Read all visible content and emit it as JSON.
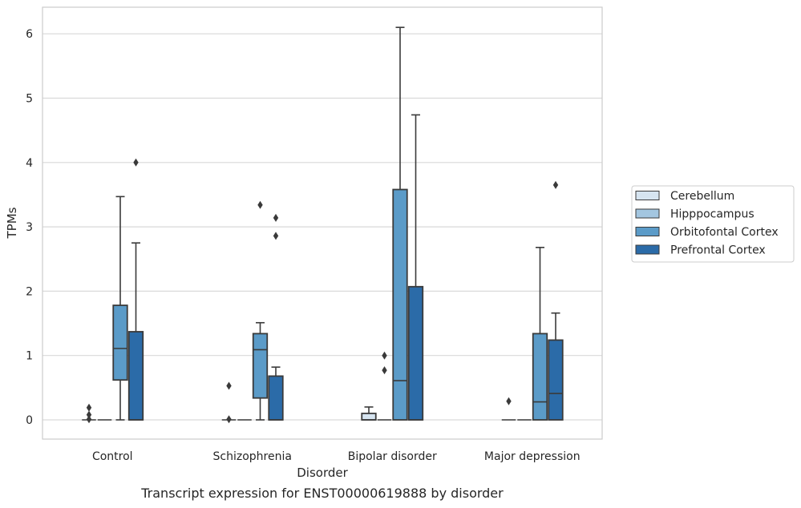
{
  "chart_data": {
    "type": "box",
    "title": "Transcript expression for ENST00000619888 by disorder",
    "xlabel": "Disorder",
    "ylabel": "TPMs",
    "ylim": [
      -0.3,
      6.42
    ],
    "yticks": [
      0,
      1,
      2,
      3,
      4,
      5,
      6
    ],
    "grid": "horizontal",
    "legend_position": "right",
    "categories": [
      "Control",
      "Schizophrenia",
      "Bipolar disorder",
      "Major depression"
    ],
    "series": [
      {
        "name": "Cerebellum",
        "color": "#d6e4f0",
        "boxes": [
          {
            "whislo": 0,
            "q1": 0,
            "med": 0,
            "q3": 0,
            "whishi": 0,
            "fliers": [
              0.01,
              0.08,
              0.19
            ]
          },
          {
            "whislo": 0,
            "q1": 0,
            "med": 0,
            "q3": 0,
            "whishi": 0,
            "fliers": [
              0.01,
              0.53
            ]
          },
          {
            "whislo": 0,
            "q1": 0,
            "med": 0,
            "q3": 0.1,
            "whishi": 0.2,
            "fliers": []
          },
          {
            "whislo": 0,
            "q1": 0,
            "med": 0,
            "q3": 0,
            "whishi": 0,
            "fliers": [
              0.29
            ]
          }
        ]
      },
      {
        "name": "Hipppocampus",
        "color": "#a3c6e0",
        "boxes": [
          {
            "whislo": 0,
            "q1": 0,
            "med": 0,
            "q3": 0,
            "whishi": 0,
            "fliers": []
          },
          {
            "whislo": 0,
            "q1": 0,
            "med": 0,
            "q3": 0,
            "whishi": 0,
            "fliers": []
          },
          {
            "whislo": 0,
            "q1": 0,
            "med": 0,
            "q3": 0,
            "whishi": 0,
            "fliers": [
              0.77,
              1.0
            ]
          },
          {
            "whislo": 0,
            "q1": 0,
            "med": 0,
            "q3": 0,
            "whishi": 0,
            "fliers": []
          }
        ]
      },
      {
        "name": "Orbitofontal Cortex",
        "color": "#5b9bc8",
        "boxes": [
          {
            "whislo": 0,
            "q1": 0.62,
            "med": 1.11,
            "q3": 1.78,
            "whishi": 3.47,
            "fliers": []
          },
          {
            "whislo": 0,
            "q1": 0.34,
            "med": 1.09,
            "q3": 1.34,
            "whishi": 1.51,
            "fliers": [
              3.34
            ]
          },
          {
            "whislo": 0,
            "q1": 0,
            "med": 0.61,
            "q3": 3.58,
            "whishi": 6.1,
            "fliers": []
          },
          {
            "whislo": 0,
            "q1": 0,
            "med": 0.28,
            "q3": 1.34,
            "whishi": 2.68,
            "fliers": []
          }
        ]
      },
      {
        "name": "Prefrontal Cortex",
        "color": "#2b6ba8",
        "boxes": [
          {
            "whislo": 0,
            "q1": 0,
            "med": 0,
            "q3": 1.37,
            "whishi": 2.75,
            "fliers": [
              4.0
            ]
          },
          {
            "whislo": 0,
            "q1": 0,
            "med": 0,
            "q3": 0.68,
            "whishi": 0.82,
            "fliers": [
              2.86,
              3.14
            ]
          },
          {
            "whislo": 0,
            "q1": 0,
            "med": 0,
            "q3": 2.07,
            "whishi": 4.74,
            "fliers": []
          },
          {
            "whislo": 0,
            "q1": 0,
            "med": 0.41,
            "q3": 1.24,
            "whishi": 1.66,
            "fliers": [
              3.65
            ]
          }
        ]
      }
    ]
  }
}
